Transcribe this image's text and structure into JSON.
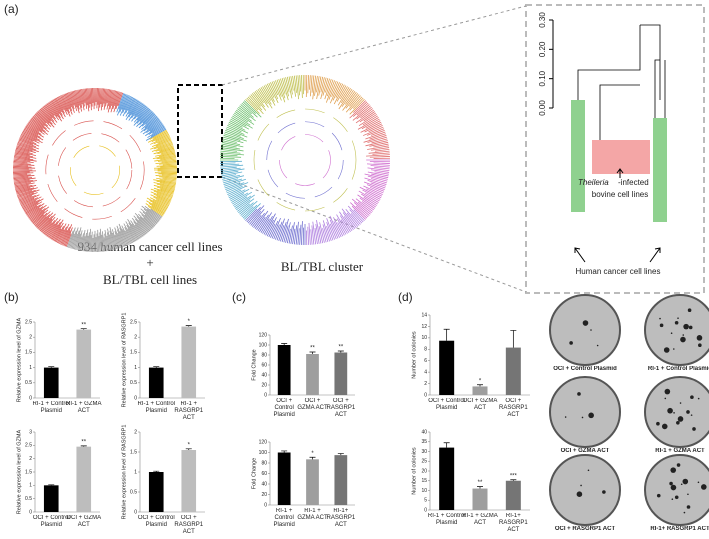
{
  "panels": {
    "a": "(a)",
    "b": "(b)",
    "c": "(c)",
    "d": "(d)"
  },
  "panel_a": {
    "left_caption": [
      "934 human cancer cell lines",
      "+",
      "BL/TBL cell lines"
    ],
    "middle_caption": "BL/TBL cluster",
    "inset": {
      "yticks": [
        {
          "value": 0,
          "label": "0.00"
        },
        {
          "value": 0.1,
          "label": "0.10"
        },
        {
          "value": 0.2,
          "label": "0.20"
        },
        {
          "value": 0.3,
          "label": "0.30"
        }
      ],
      "ylim": [
        0,
        0.3
      ],
      "bovine_label": [
        "Theileria",
        "-infected",
        "bovine cell lines"
      ],
      "human_label": "Human cancer cell lines"
    }
  },
  "chart_data": [
    {
      "type": "bar",
      "ylabel": "Relative expression level of GZMA",
      "categories": [
        "RI-1 + Control Plasmid",
        "RI-1 + GZMA ACT"
      ],
      "values": [
        1,
        2.25
      ],
      "errors": [
        0.03,
        0.03
      ],
      "colors": [
        "#000000",
        "#bdbdbd"
      ],
      "ylim": [
        0,
        2.5
      ],
      "yticks": [
        0,
        0.5,
        1,
        1.5,
        2,
        2.5
      ],
      "annotations": [
        null,
        "**"
      ]
    },
    {
      "type": "bar",
      "ylabel": "Relative expression level of RASGRP1",
      "categories": [
        "RI-1 + Control Plasmid",
        "RI-1 + RASGRP1 ACT"
      ],
      "values": [
        1,
        2.35
      ],
      "errors": [
        0.03,
        0.03
      ],
      "colors": [
        "#000000",
        "#bdbdbd"
      ],
      "ylim": [
        0,
        2.5
      ],
      "yticks": [
        0,
        0.5,
        1,
        1.5,
        2,
        2.5
      ],
      "annotations": [
        null,
        "*"
      ]
    },
    {
      "type": "bar",
      "ylabel": "Relative expression level of GZMA",
      "categories": [
        "OCI + Control Plasmid",
        "OCI + GZMA ACT"
      ],
      "values": [
        1,
        2.45
      ],
      "errors": [
        0.02,
        0.03
      ],
      "colors": [
        "#000000",
        "#bdbdbd"
      ],
      "ylim": [
        0,
        3
      ],
      "yticks": [
        0,
        0.5,
        1,
        1.5,
        2,
        2.5,
        3
      ],
      "annotations": [
        null,
        "**"
      ]
    },
    {
      "type": "bar",
      "ylabel": "Relative expression level of RASGRP1",
      "categories": [
        "OCI + Control Plasmid",
        "OCI + RASGRP1 ACT"
      ],
      "values": [
        1,
        1.55
      ],
      "errors": [
        0.02,
        0.03
      ],
      "colors": [
        "#000000",
        "#bdbdbd"
      ],
      "ylim": [
        0,
        2
      ],
      "yticks": [
        0,
        0.5,
        1,
        1.5,
        2
      ],
      "annotations": [
        null,
        "*"
      ]
    },
    {
      "type": "bar",
      "ylabel": "Fold Change",
      "categories": [
        "OCI + Control Plasmid",
        "OCI + GZMA ACT",
        "OCI + RASGRP1 ACT"
      ],
      "values": [
        100,
        82,
        85
      ],
      "errors": [
        3,
        4,
        3
      ],
      "colors": [
        "#000000",
        "#9e9e9e",
        "#757575"
      ],
      "ylim": [
        0,
        120
      ],
      "yticks": [
        0,
        20,
        40,
        60,
        80,
        100,
        120
      ],
      "annotations": [
        null,
        "**",
        "**"
      ]
    },
    {
      "type": "bar",
      "ylabel": "Fold Change",
      "categories": [
        "RI-1 + Control Plasmid",
        "RI-1 + GZMA ACT",
        "RI-1+ RASGRP1 ACT"
      ],
      "values": [
        100,
        87,
        95
      ],
      "errors": [
        3,
        4,
        3
      ],
      "colors": [
        "#000000",
        "#9e9e9e",
        "#757575"
      ],
      "ylim": [
        0,
        120
      ],
      "yticks": [
        0,
        20,
        40,
        60,
        80,
        100,
        120
      ],
      "annotations": [
        null,
        "*",
        null
      ]
    },
    {
      "type": "bar",
      "ylabel": "Number of colonies",
      "categories": [
        "OCI + Control Plasmid",
        "OCI + GZMA ACT",
        "OCI + RASGRP1 ACT"
      ],
      "values": [
        9.5,
        1.5,
        8.3
      ],
      "errors": [
        2,
        0.3,
        3
      ],
      "colors": [
        "#000000",
        "#9e9e9e",
        "#757575"
      ],
      "ylim": [
        0,
        14
      ],
      "yticks": [
        0,
        2,
        4,
        6,
        8,
        10,
        12,
        14
      ],
      "annotations": [
        null,
        "*",
        null
      ]
    },
    {
      "type": "bar",
      "ylabel": "Number of colonies",
      "categories": [
        "RI-1 + Control Plasmid",
        "RI-1 + GZMA ACT",
        "RI-1+ RASGRP1 ACT"
      ],
      "values": [
        32,
        11,
        15
      ],
      "errors": [
        2.5,
        1,
        0.5
      ],
      "colors": [
        "#000000",
        "#9e9e9e",
        "#757575"
      ],
      "ylim": [
        0,
        40
      ],
      "yticks": [
        0,
        5,
        10,
        15,
        20,
        25,
        30,
        35,
        40
      ],
      "annotations": [
        null,
        "**",
        "***"
      ]
    }
  ],
  "plates": [
    "OCI + Control Plasmid",
    "RI-1 + Control Plasmid",
    "OCI + GZMA ACT",
    "RI-1 + GZMA ACT",
    "OCI + RASGRP1 ACT",
    "RI-1+ RASGRP1 ACT"
  ]
}
